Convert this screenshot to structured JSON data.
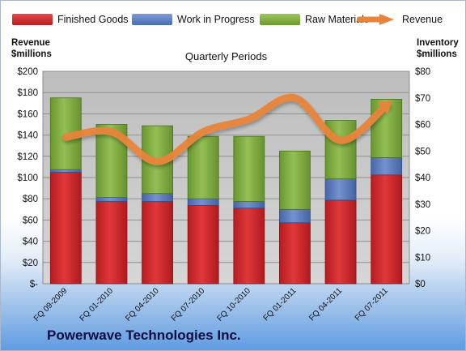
{
  "legend": {
    "finished": "Finished Goods",
    "wip": "Work in Progress",
    "raw": "Raw Materials",
    "revenue": "Revenue"
  },
  "left_axis_title": [
    "Revenue",
    "$millions"
  ],
  "right_axis_title": [
    "Inventory",
    "$millions"
  ],
  "company": "Powerwave Technologies Inc.",
  "colors": {
    "finished": "#d9262a",
    "wip": "#5b7fc4",
    "raw": "#7fae3e",
    "revenue": "#e8843a",
    "plot_bg": "#c7c7c7"
  },
  "chart_data": {
    "type": "bar",
    "stacked": true,
    "title": "Quarterly Periods",
    "categories": [
      "FQ 09-2009",
      "FQ 01-2010",
      "FQ 04-2010",
      "FQ 07-2010",
      "FQ 10-2010",
      "FQ 01-2011",
      "FQ 04-2011",
      "FQ 07-2011"
    ],
    "series": [
      {
        "name": "Finished Goods",
        "axis": "right",
        "values": [
          42.0,
          31.0,
          31.0,
          29.5,
          28.5,
          23.0,
          31.5,
          41.0
        ]
      },
      {
        "name": "Work in Progress",
        "axis": "right",
        "values": [
          1.0,
          1.5,
          3.0,
          2.5,
          2.5,
          5.0,
          8.0,
          6.5
        ]
      },
      {
        "name": "Raw Materials",
        "axis": "right",
        "values": [
          27.0,
          27.5,
          25.5,
          23.5,
          24.5,
          22.0,
          22.0,
          22.0
        ]
      },
      {
        "name": "Revenue",
        "type": "line",
        "axis": "left",
        "values": [
          138,
          143,
          115,
          143,
          155,
          175,
          135,
          168
        ]
      }
    ],
    "left_axis": {
      "min": 0,
      "max": 200,
      "step": 20,
      "tick_labels": [
        "$-",
        "$20",
        "$40",
        "$60",
        "$80",
        "$100",
        "$120",
        "$140",
        "$160",
        "$180",
        "$200"
      ]
    },
    "right_axis": {
      "min": 0,
      "max": 80,
      "step": 10,
      "tick_labels": [
        "$0",
        "$10",
        "$20",
        "$30",
        "$40",
        "$50",
        "$60",
        "$70",
        "$80"
      ]
    },
    "grid": true,
    "legend_position": "top"
  }
}
